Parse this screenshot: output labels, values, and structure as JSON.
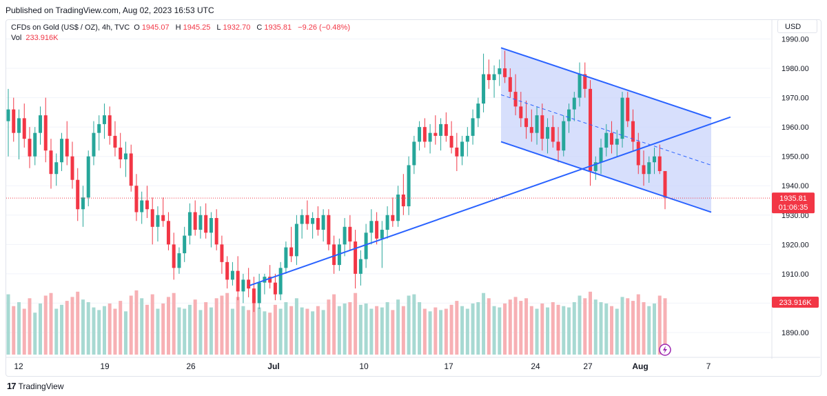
{
  "header": {
    "published": "Published on TradingView.com, Aug 02, 2023 16:53 UTC"
  },
  "legend": {
    "symbol": "CFDs on Gold (US$ / OZ), 4h, TVC",
    "open_label": "O",
    "open": "1945.07",
    "high_label": "H",
    "high": "1945.25",
    "low_label": "L",
    "low": "1932.70",
    "close_label": "C",
    "close": "1935.81",
    "change": "−9.26 (−0.48%)",
    "vol_label": "Vol",
    "vol": "233.916K"
  },
  "currency_button": "USD",
  "footer": {
    "brand": "TradingView",
    "logo": "17"
  },
  "colors": {
    "up": "#26a69a",
    "down": "#f23645",
    "channel": "#2962ff",
    "channel_fill": "#c9d4fb"
  },
  "chart_data": {
    "type": "candlestick",
    "ylim": [
      1882,
      1992
    ],
    "y_ticks": [
      "1990.00",
      "1980.00",
      "1970.00",
      "1960.00",
      "1950.00",
      "1940.00",
      "1930.00",
      "1920.00",
      "1910.00",
      "1900.00",
      "1890.00"
    ],
    "x_ticks": [
      "12",
      "19",
      "26",
      "Jul",
      "10",
      "17",
      "24",
      "27",
      "Aug",
      "7"
    ],
    "last_price": "1935.81",
    "countdown": "01:06:35",
    "volume_label": "233.916K",
    "drawings": {
      "trendline": {
        "from": [
          "Jun 29",
          1906
        ],
        "to": [
          "Aug 7",
          1962
        ]
      },
      "channel_upper": {
        "from": [
          "Jul 20",
          1987
        ],
        "to": [
          "Aug 7",
          1963
        ]
      },
      "channel_lower": {
        "from": [
          "Jul 20",
          1955
        ],
        "to": [
          "Aug 7",
          1931
        ]
      },
      "channel_mid": {
        "from": [
          "Jul 20",
          1971
        ],
        "to": [
          "Aug 7",
          1947
        ]
      }
    },
    "candles": [
      [
        1962,
        1973,
        1950,
        1966,
        92
      ],
      [
        1966,
        1970,
        1955,
        1958,
        74
      ],
      [
        1958,
        1966,
        1949,
        1963,
        80
      ],
      [
        1963,
        1968,
        1953,
        1956,
        70
      ],
      [
        1956,
        1960,
        1946,
        1950,
        86
      ],
      [
        1950,
        1960,
        1947,
        1958,
        64
      ],
      [
        1958,
        1967,
        1954,
        1964,
        78
      ],
      [
        1964,
        1970,
        1948,
        1952,
        90
      ],
      [
        1952,
        1956,
        1939,
        1944,
        94
      ],
      [
        1944,
        1951,
        1940,
        1948,
        70
      ],
      [
        1948,
        1958,
        1945,
        1956,
        76
      ],
      [
        1956,
        1962,
        1947,
        1950,
        82
      ],
      [
        1950,
        1955,
        1939,
        1942,
        88
      ],
      [
        1942,
        1946,
        1928,
        1932,
        96
      ],
      [
        1932,
        1940,
        1926,
        1936,
        84
      ],
      [
        1936,
        1952,
        1933,
        1950,
        80
      ],
      [
        1950,
        1962,
        1947,
        1958,
        72
      ],
      [
        1958,
        1964,
        1952,
        1961,
        68
      ],
      [
        1961,
        1968,
        1956,
        1964,
        74
      ],
      [
        1964,
        1967,
        1954,
        1957,
        78
      ],
      [
        1957,
        1962,
        1950,
        1953,
        70
      ],
      [
        1953,
        1958,
        1946,
        1949,
        82
      ],
      [
        1949,
        1955,
        1943,
        1951,
        66
      ],
      [
        1951,
        1954,
        1938,
        1940,
        90
      ],
      [
        1940,
        1944,
        1928,
        1931,
        98
      ],
      [
        1931,
        1938,
        1927,
        1935,
        86
      ],
      [
        1935,
        1940,
        1929,
        1932,
        76
      ],
      [
        1932,
        1936,
        1920,
        1926,
        92
      ],
      [
        1926,
        1933,
        1921,
        1930,
        70
      ],
      [
        1930,
        1936,
        1926,
        1928,
        78
      ],
      [
        1928,
        1931,
        1918,
        1920,
        88
      ],
      [
        1920,
        1924,
        1908,
        1912,
        94
      ],
      [
        1912,
        1919,
        1910,
        1917,
        72
      ],
      [
        1917,
        1926,
        1914,
        1923,
        70
      ],
      [
        1923,
        1934,
        1920,
        1931,
        76
      ],
      [
        1931,
        1935,
        1923,
        1925,
        84
      ],
      [
        1925,
        1933,
        1922,
        1930,
        68
      ],
      [
        1930,
        1934,
        1922,
        1924,
        80
      ],
      [
        1924,
        1931,
        1919,
        1929,
        72
      ],
      [
        1929,
        1932,
        1918,
        1920,
        86
      ],
      [
        1920,
        1923,
        1910,
        1914,
        90
      ],
      [
        1914,
        1916,
        1905,
        1908,
        94
      ],
      [
        1908,
        1914,
        1906,
        1911,
        70
      ],
      [
        1911,
        1916,
        1901,
        1904,
        88
      ],
      [
        1904,
        1910,
        1900,
        1908,
        74
      ],
      [
        1908,
        1912,
        1902,
        1905,
        68
      ],
      [
        1905,
        1909,
        1897,
        1900,
        90
      ],
      [
        1900,
        1910,
        1898,
        1907,
        72
      ],
      [
        1907,
        1910,
        1903,
        1909,
        66
      ],
      [
        1909,
        1913,
        1905,
        1907,
        64
      ],
      [
        1907,
        1910,
        1901,
        1903,
        76
      ],
      [
        1903,
        1914,
        1901,
        1912,
        70
      ],
      [
        1912,
        1921,
        1910,
        1919,
        80
      ],
      [
        1919,
        1926,
        1914,
        1916,
        74
      ],
      [
        1916,
        1930,
        1913,
        1927,
        86
      ],
      [
        1927,
        1932,
        1922,
        1930,
        72
      ],
      [
        1930,
        1935,
        1925,
        1927,
        70
      ],
      [
        1927,
        1931,
        1922,
        1929,
        66
      ],
      [
        1929,
        1933,
        1923,
        1925,
        74
      ],
      [
        1925,
        1932,
        1921,
        1930,
        68
      ],
      [
        1930,
        1932,
        1918,
        1920,
        84
      ],
      [
        1920,
        1923,
        1910,
        1913,
        92
      ],
      [
        1913,
        1922,
        1911,
        1920,
        74
      ],
      [
        1920,
        1929,
        1916,
        1926,
        78
      ],
      [
        1926,
        1930,
        1918,
        1921,
        80
      ],
      [
        1921,
        1925,
        1905,
        1910,
        94
      ],
      [
        1910,
        1918,
        1906,
        1915,
        76
      ],
      [
        1915,
        1927,
        1912,
        1924,
        78
      ],
      [
        1924,
        1932,
        1920,
        1928,
        70
      ],
      [
        1928,
        1931,
        1920,
        1922,
        74
      ],
      [
        1922,
        1928,
        1912,
        1925,
        72
      ],
      [
        1925,
        1933,
        1922,
        1930,
        80
      ],
      [
        1930,
        1936,
        1926,
        1928,
        68
      ],
      [
        1928,
        1940,
        1926,
        1937,
        84
      ],
      [
        1937,
        1944,
        1930,
        1933,
        74
      ],
      [
        1933,
        1950,
        1930,
        1947,
        90
      ],
      [
        1947,
        1957,
        1944,
        1955,
        92
      ],
      [
        1955,
        1962,
        1952,
        1960,
        80
      ],
      [
        1960,
        1963,
        1953,
        1955,
        70
      ],
      [
        1955,
        1961,
        1951,
        1958,
        66
      ],
      [
        1958,
        1964,
        1954,
        1957,
        72
      ],
      [
        1957,
        1963,
        1952,
        1961,
        68
      ],
      [
        1961,
        1965,
        1955,
        1957,
        70
      ],
      [
        1957,
        1962,
        1951,
        1953,
        76
      ],
      [
        1953,
        1958,
        1945,
        1950,
        82
      ],
      [
        1950,
        1957,
        1947,
        1955,
        74
      ],
      [
        1955,
        1960,
        1950,
        1957,
        70
      ],
      [
        1957,
        1966,
        1954,
        1963,
        78
      ],
      [
        1963,
        1970,
        1960,
        1968,
        80
      ],
      [
        1968,
        1985,
        1965,
        1978,
        94
      ],
      [
        1978,
        1983,
        1973,
        1976,
        86
      ],
      [
        1976,
        1981,
        1970,
        1978,
        74
      ],
      [
        1978,
        1983,
        1974,
        1980,
        72
      ],
      [
        1980,
        1986,
        1975,
        1977,
        78
      ],
      [
        1977,
        1980,
        1970,
        1972,
        84
      ],
      [
        1972,
        1978,
        1964,
        1967,
        88
      ],
      [
        1967,
        1972,
        1960,
        1963,
        82
      ],
      [
        1963,
        1969,
        1956,
        1960,
        86
      ],
      [
        1960,
        1966,
        1955,
        1958,
        74
      ],
      [
        1958,
        1967,
        1954,
        1964,
        70
      ],
      [
        1964,
        1968,
        1952,
        1956,
        78
      ],
      [
        1956,
        1963,
        1951,
        1960,
        72
      ],
      [
        1960,
        1964,
        1953,
        1955,
        80
      ],
      [
        1955,
        1960,
        1948,
        1952,
        76
      ],
      [
        1952,
        1964,
        1950,
        1962,
        74
      ],
      [
        1962,
        1968,
        1958,
        1966,
        72
      ],
      [
        1966,
        1972,
        1962,
        1970,
        80
      ],
      [
        1970,
        1982,
        1967,
        1978,
        90
      ],
      [
        1978,
        1982,
        1970,
        1973,
        86
      ],
      [
        1973,
        1976,
        1940,
        1945,
        96
      ],
      [
        1945,
        1950,
        1942,
        1948,
        84
      ],
      [
        1948,
        1956,
        1944,
        1953,
        80
      ],
      [
        1953,
        1961,
        1950,
        1958,
        78
      ],
      [
        1958,
        1962,
        1951,
        1954,
        74
      ],
      [
        1954,
        1959,
        1950,
        1956,
        70
      ],
      [
        1956,
        1972,
        1953,
        1970,
        88
      ],
      [
        1970,
        1972,
        1960,
        1962,
        86
      ],
      [
        1962,
        1966,
        1952,
        1955,
        82
      ],
      [
        1955,
        1958,
        1944,
        1947,
        92
      ],
      [
        1947,
        1952,
        1940,
        1944,
        80
      ],
      [
        1944,
        1950,
        1941,
        1948,
        74
      ],
      [
        1948,
        1953,
        1944,
        1950,
        78
      ],
      [
        1950,
        1954,
        1944,
        1945,
        90
      ],
      [
        1945,
        1945,
        1932,
        1936,
        86
      ]
    ],
    "volume_axis_note": "relative heights"
  }
}
